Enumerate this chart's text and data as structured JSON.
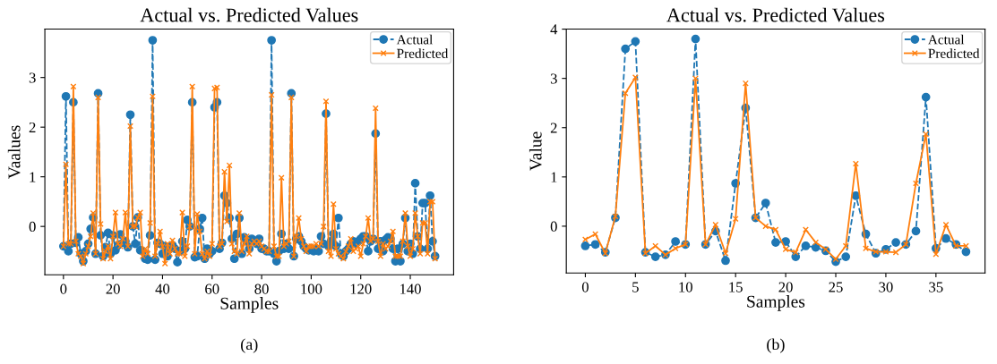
{
  "chart_data": [
    {
      "type": "line",
      "title": "Actual vs. Predicted Values",
      "xlabel": "Samples",
      "ylabel": "Vaalues",
      "annotations": [
        "(a)"
      ],
      "xlim": [
        -7.5,
        157.5
      ],
      "ylim": [
        -0.975,
        3.975
      ],
      "xticks": [
        0,
        20,
        40,
        60,
        80,
        100,
        120,
        140
      ],
      "yticks": [
        0,
        1,
        2,
        3
      ],
      "legend": "top right",
      "grid": false,
      "x": [
        0,
        1,
        2,
        3,
        4,
        5,
        6,
        7,
        8,
        9,
        10,
        11,
        12,
        13,
        14,
        15,
        16,
        17,
        18,
        19,
        20,
        21,
        22,
        23,
        24,
        25,
        26,
        27,
        28,
        29,
        30,
        31,
        32,
        33,
        34,
        35,
        36,
        37,
        38,
        39,
        40,
        41,
        42,
        43,
        44,
        45,
        46,
        47,
        48,
        49,
        50,
        51,
        52,
        53,
        54,
        55,
        56,
        57,
        58,
        59,
        60,
        61,
        62,
        63,
        64,
        65,
        66,
        67,
        68,
        69,
        70,
        71,
        72,
        73,
        74,
        75,
        76,
        77,
        78,
        79,
        80,
        81,
        82,
        83,
        84,
        85,
        86,
        87,
        88,
        89,
        90,
        91,
        92,
        93,
        94,
        95,
        96,
        97,
        98,
        99,
        100,
        101,
        102,
        103,
        104,
        105,
        106,
        107,
        108,
        109,
        110,
        111,
        112,
        113,
        114,
        115,
        116,
        117,
        118,
        119,
        120,
        121,
        122,
        123,
        124,
        125,
        126,
        127,
        128,
        129,
        130,
        131,
        132,
        133,
        134,
        135,
        136,
        137,
        138,
        139,
        140,
        141,
        142,
        143,
        144,
        145,
        146,
        147,
        148,
        149,
        150
      ],
      "series": [
        {
          "name": "Actual",
          "color": "#1f77b4",
          "marker": "circle",
          "line_style": "dashed",
          "values": [
            -0.4,
            2.62,
            -0.5,
            -0.35,
            2.5,
            -0.33,
            -0.22,
            -0.55,
            -0.7,
            -0.5,
            -0.35,
            -0.05,
            0.18,
            -0.55,
            2.68,
            -0.18,
            -0.6,
            -0.42,
            -0.13,
            -0.55,
            -0.18,
            -0.48,
            -0.38,
            -0.16,
            -0.33,
            -0.3,
            -0.42,
            2.25,
            0.0,
            -0.35,
            0.18,
            -0.48,
            -0.5,
            -0.65,
            -0.67,
            -0.18,
            3.75,
            -0.67,
            -0.33,
            -0.35,
            -0.55,
            -0.4,
            -0.6,
            -0.45,
            -0.38,
            -0.45,
            -0.72,
            -0.5,
            -0.3,
            -0.45,
            0.13,
            0.0,
            2.5,
            -0.62,
            -0.6,
            -0.05,
            0.17,
            -0.65,
            -0.45,
            -0.55,
            -0.5,
            2.4,
            2.5,
            -0.45,
            -0.33,
            0.62,
            0.47,
            0.17,
            -0.25,
            -0.65,
            -0.15,
            0.17,
            -0.55,
            -0.22,
            -0.3,
            -0.45,
            -0.25,
            -0.3,
            -0.35,
            -0.25,
            -0.45,
            -0.45,
            -0.5,
            -0.5,
            3.75,
            -0.55,
            -0.7,
            -0.5,
            -0.15,
            -0.45,
            -0.35,
            -0.45,
            2.68,
            -0.6,
            -0.25,
            -0.2,
            -0.3,
            -0.4,
            -0.45,
            -0.48,
            -0.45,
            -0.5,
            -0.45,
            -0.5,
            -0.2,
            -0.35,
            2.27,
            -0.4,
            -0.3,
            -0.15,
            -0.4,
            0.17,
            -0.55,
            -0.6,
            -0.5,
            -0.45,
            -0.35,
            -0.3,
            -0.35,
            -0.3,
            -0.25,
            -0.2,
            -0.2,
            -0.5,
            -0.3,
            -0.25,
            1.87,
            -0.45,
            -0.3,
            -0.5,
            -0.27,
            -0.22,
            -0.25,
            -0.45,
            -0.7,
            -0.45,
            -0.7,
            -0.35,
            0.17,
            -0.5,
            -0.35,
            -0.55,
            0.87,
            -0.2,
            -0.45,
            0.47,
            0.47,
            -0.45,
            0.62,
            -0.3,
            -0.6
          ]
        },
        {
          "name": "Predicted",
          "color": "#ff7f0e",
          "marker": "cross",
          "line_style": "solid",
          "values": [
            -0.4,
            1.25,
            -0.35,
            -0.35,
            2.82,
            -0.3,
            -0.55,
            -0.6,
            -0.75,
            -0.55,
            -0.4,
            -0.2,
            0.27,
            -0.55,
            2.6,
            0.05,
            -0.65,
            -0.5,
            -0.4,
            -0.65,
            -0.2,
            0.28,
            -0.35,
            -0.4,
            -0.25,
            0.28,
            -0.4,
            2.02,
            0.0,
            0.0,
            0.18,
            0.28,
            -0.6,
            -0.45,
            -0.55,
            0.07,
            2.62,
            -0.6,
            -0.35,
            -0.1,
            -0.4,
            -0.75,
            -0.35,
            -0.55,
            -0.28,
            -0.45,
            -0.55,
            -0.55,
            0.28,
            -0.6,
            -0.4,
            0.0,
            2.82,
            -0.55,
            0.25,
            -0.1,
            -0.55,
            -0.65,
            -0.5,
            -0.6,
            -0.35,
            2.78,
            2.8,
            -0.4,
            -0.35,
            1.1,
            0.1,
            1.23,
            -0.35,
            -0.5,
            -0.55,
            0.27,
            -0.5,
            -0.35,
            -0.2,
            -0.55,
            -0.35,
            -0.3,
            -0.35,
            -0.3,
            -0.4,
            -0.45,
            -0.5,
            -0.5,
            2.65,
            -0.4,
            -0.6,
            -0.6,
            0.98,
            -0.4,
            -0.35,
            -0.3,
            2.6,
            -0.6,
            -0.2,
            0.17,
            -0.25,
            -0.4,
            -0.5,
            -0.4,
            -0.4,
            -0.4,
            -0.35,
            -0.4,
            -0.35,
            0.0,
            2.52,
            -0.5,
            -0.6,
            0.45,
            -0.45,
            -0.55,
            -0.6,
            -0.65,
            -0.5,
            -0.4,
            -0.25,
            -0.5,
            -0.45,
            -0.4,
            -0.6,
            -0.35,
            -0.2,
            0.17,
            -0.3,
            -0.25,
            2.38,
            -0.3,
            -0.6,
            -0.35,
            -0.45,
            -0.4,
            -0.3,
            -0.1,
            -0.6,
            -0.6,
            -0.6,
            -0.3,
            0.27,
            -0.4,
            -0.6,
            -0.45,
            0.27,
            -0.2,
            -0.55,
            0.07,
            0.07,
            -0.55,
            0.5,
            0.5,
            -0.65
          ]
        }
      ]
    },
    {
      "type": "line",
      "title": "Actual vs. Predicted Values",
      "xlabel": "Samples",
      "ylabel": "Value",
      "annotations": [
        "(b)"
      ],
      "xlim": [
        -1.9,
        39.9
      ],
      "ylim": [
        -0.95,
        4.0
      ],
      "xticks": [
        0,
        5,
        10,
        15,
        20,
        25,
        30,
        35
      ],
      "yticks": [
        0,
        1,
        2,
        3,
        4
      ],
      "legend": "top right",
      "grid": false,
      "x": [
        0,
        1,
        2,
        3,
        4,
        5,
        6,
        7,
        8,
        9,
        10,
        11,
        12,
        13,
        14,
        15,
        16,
        17,
        18,
        19,
        20,
        21,
        22,
        23,
        24,
        25,
        26,
        27,
        28,
        29,
        30,
        31,
        32,
        33,
        34,
        35,
        36,
        37,
        38
      ],
      "series": [
        {
          "name": "Actual",
          "color": "#1f77b4",
          "marker": "circle",
          "line_style": "dashed",
          "values": [
            -0.4,
            -0.37,
            -0.53,
            0.17,
            3.6,
            3.75,
            -0.53,
            -0.62,
            -0.58,
            -0.31,
            -0.37,
            3.8,
            -0.37,
            -0.1,
            -0.7,
            0.87,
            2.4,
            0.17,
            0.47,
            -0.33,
            -0.31,
            -0.62,
            -0.4,
            -0.43,
            -0.5,
            -0.72,
            -0.62,
            0.62,
            -0.16,
            -0.55,
            -0.47,
            -0.33,
            -0.37,
            -0.1,
            2.62,
            -0.45,
            -0.25,
            -0.37,
            -0.52
          ]
        },
        {
          "name": "Predicted",
          "color": "#ff7f0e",
          "marker": "cross",
          "line_style": "solid",
          "values": [
            -0.27,
            -0.16,
            -0.55,
            0.2,
            2.7,
            3.02,
            -0.55,
            -0.4,
            -0.58,
            -0.45,
            -0.37,
            3.0,
            -0.37,
            0.03,
            -0.55,
            0.15,
            2.9,
            0.17,
            0.0,
            -0.07,
            -0.47,
            -0.53,
            -0.07,
            -0.33,
            -0.47,
            -0.67,
            -0.4,
            1.27,
            -0.45,
            -0.52,
            -0.52,
            -0.53,
            -0.37,
            0.87,
            1.87,
            -0.57,
            0.03,
            -0.4,
            -0.4
          ]
        }
      ]
    }
  ]
}
